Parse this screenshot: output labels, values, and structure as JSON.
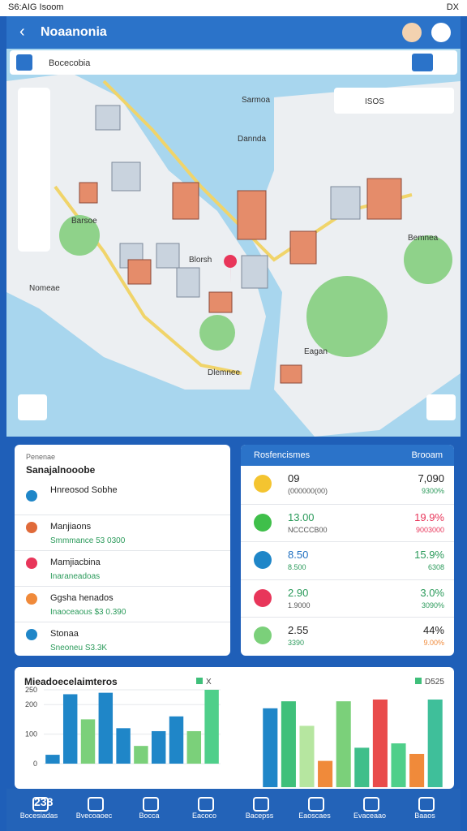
{
  "status": {
    "time": "S6:AIG Isoom",
    "right": "DX"
  },
  "header": {
    "title": "Noaanonia"
  },
  "search": {
    "placeholder": "Bocecobia"
  },
  "map": {
    "controls": "ISOS",
    "labels": [
      "Sarmoa",
      "Dannda",
      "Bemnea",
      "Nomeae",
      "Dlemnee",
      "Eagan",
      "Barsoe",
      "Blorsh"
    ]
  },
  "list": {
    "subtitle": "Penenae",
    "title": "Sanajalnooobe",
    "items": [
      {
        "title": "Hnreosod Sobhe",
        "detail": ""
      },
      {
        "title": "Manjiaons",
        "detail": "Smmmance  53 0300"
      },
      {
        "title": "Mamjiacbina",
        "detail": "Inaraneadoas"
      },
      {
        "title": "Ggsha henados",
        "detail": "Inaoceaous $3 0.390"
      },
      {
        "title": "Stonaa",
        "detail": "Sneoneu  S3.3K"
      }
    ]
  },
  "table": {
    "title": "Rosfencismes",
    "action": "Brooam",
    "rows": [
      [
        "09",
        "(000000(00)",
        "7,090",
        "9300%"
      ],
      [
        "13.00",
        "NCCCCB00",
        "19.9%",
        "9003000"
      ],
      [
        "8.50",
        "8.500",
        "15.9%",
        "6308"
      ],
      [
        "2.90",
        "1.9000",
        "3.0%",
        "3090%"
      ],
      [
        "2.55",
        "3390",
        "44%",
        "9.00%"
      ]
    ]
  },
  "charts": [
    {
      "title": "Mieadoecelaimteros",
      "legend": "X",
      "ylim": [
        0,
        250
      ],
      "yticks": [
        0,
        100,
        200,
        250
      ],
      "values": [
        30,
        235,
        150,
        240,
        120,
        60,
        110,
        160,
        110,
        250
      ],
      "colors": [
        "#1f86c8",
        "#1f86c8",
        "#7bd07a",
        "#1f86c8",
        "#1f86c8",
        "#7bd07a",
        "#1f86c8",
        "#1f86c8",
        "#7bd07a",
        "#4fcf8a"
      ]
    },
    {
      "legend": "D525",
      "ylim": [
        0,
        100
      ],
      "values": [
        90,
        98,
        70,
        30,
        98,
        45,
        100,
        50,
        38,
        100
      ],
      "colors": [
        "#1f86c8",
        "#3fc07a",
        "#b6e6a0",
        "#f08a3a",
        "#7bd07a",
        "#3fbf8a",
        "#e94b4b",
        "#4fcf8a",
        "#f08a3a",
        "#3fbf9a"
      ]
    }
  ],
  "nav": {
    "badge": "238",
    "items": [
      "Bocesiadas",
      "Bvecoaoec",
      "Bocca",
      "Eacoco",
      "Bacepss",
      "Eaoscaes",
      "Evaceaao",
      "Baaos"
    ]
  }
}
